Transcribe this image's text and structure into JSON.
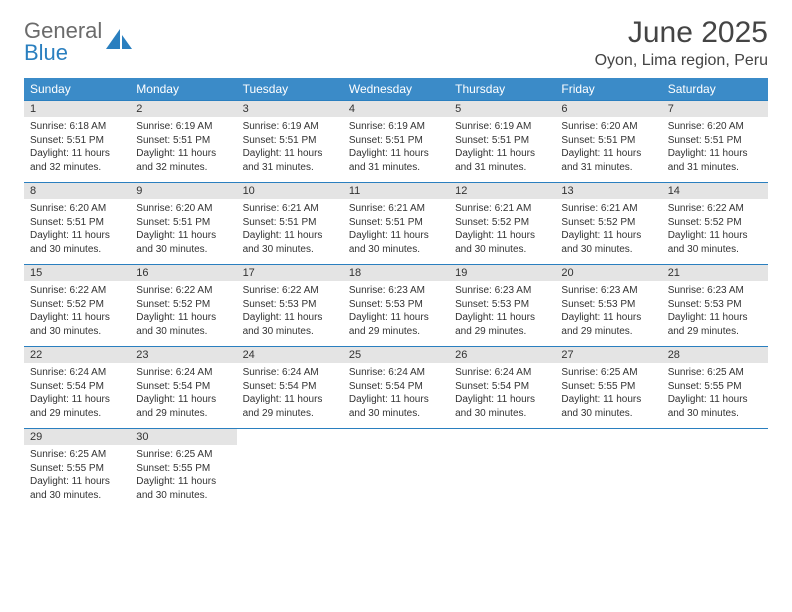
{
  "brand": {
    "name_gray": "General",
    "name_blue": "Blue"
  },
  "title": "June 2025",
  "location": "Oyon, Lima region, Peru",
  "theme": {
    "header_bg": "#3b8bc8",
    "header_fg": "#ffffff",
    "daynum_bg": "#e4e4e4",
    "week_border": "#2a7fbf",
    "text_color": "#333333",
    "logo_gray": "#6b6b6b",
    "logo_blue": "#2a7fbf"
  },
  "columns": [
    "Sunday",
    "Monday",
    "Tuesday",
    "Wednesday",
    "Thursday",
    "Friday",
    "Saturday"
  ],
  "weeks": [
    [
      {
        "n": "1",
        "sr": "6:18 AM",
        "ss": "5:51 PM",
        "dl": "11 hours and 32 minutes."
      },
      {
        "n": "2",
        "sr": "6:19 AM",
        "ss": "5:51 PM",
        "dl": "11 hours and 32 minutes."
      },
      {
        "n": "3",
        "sr": "6:19 AM",
        "ss": "5:51 PM",
        "dl": "11 hours and 31 minutes."
      },
      {
        "n": "4",
        "sr": "6:19 AM",
        "ss": "5:51 PM",
        "dl": "11 hours and 31 minutes."
      },
      {
        "n": "5",
        "sr": "6:19 AM",
        "ss": "5:51 PM",
        "dl": "11 hours and 31 minutes."
      },
      {
        "n": "6",
        "sr": "6:20 AM",
        "ss": "5:51 PM",
        "dl": "11 hours and 31 minutes."
      },
      {
        "n": "7",
        "sr": "6:20 AM",
        "ss": "5:51 PM",
        "dl": "11 hours and 31 minutes."
      }
    ],
    [
      {
        "n": "8",
        "sr": "6:20 AM",
        "ss": "5:51 PM",
        "dl": "11 hours and 30 minutes."
      },
      {
        "n": "9",
        "sr": "6:20 AM",
        "ss": "5:51 PM",
        "dl": "11 hours and 30 minutes."
      },
      {
        "n": "10",
        "sr": "6:21 AM",
        "ss": "5:51 PM",
        "dl": "11 hours and 30 minutes."
      },
      {
        "n": "11",
        "sr": "6:21 AM",
        "ss": "5:51 PM",
        "dl": "11 hours and 30 minutes."
      },
      {
        "n": "12",
        "sr": "6:21 AM",
        "ss": "5:52 PM",
        "dl": "11 hours and 30 minutes."
      },
      {
        "n": "13",
        "sr": "6:21 AM",
        "ss": "5:52 PM",
        "dl": "11 hours and 30 minutes."
      },
      {
        "n": "14",
        "sr": "6:22 AM",
        "ss": "5:52 PM",
        "dl": "11 hours and 30 minutes."
      }
    ],
    [
      {
        "n": "15",
        "sr": "6:22 AM",
        "ss": "5:52 PM",
        "dl": "11 hours and 30 minutes."
      },
      {
        "n": "16",
        "sr": "6:22 AM",
        "ss": "5:52 PM",
        "dl": "11 hours and 30 minutes."
      },
      {
        "n": "17",
        "sr": "6:22 AM",
        "ss": "5:53 PM",
        "dl": "11 hours and 30 minutes."
      },
      {
        "n": "18",
        "sr": "6:23 AM",
        "ss": "5:53 PM",
        "dl": "11 hours and 29 minutes."
      },
      {
        "n": "19",
        "sr": "6:23 AM",
        "ss": "5:53 PM",
        "dl": "11 hours and 29 minutes."
      },
      {
        "n": "20",
        "sr": "6:23 AM",
        "ss": "5:53 PM",
        "dl": "11 hours and 29 minutes."
      },
      {
        "n": "21",
        "sr": "6:23 AM",
        "ss": "5:53 PM",
        "dl": "11 hours and 29 minutes."
      }
    ],
    [
      {
        "n": "22",
        "sr": "6:24 AM",
        "ss": "5:54 PM",
        "dl": "11 hours and 29 minutes."
      },
      {
        "n": "23",
        "sr": "6:24 AM",
        "ss": "5:54 PM",
        "dl": "11 hours and 29 minutes."
      },
      {
        "n": "24",
        "sr": "6:24 AM",
        "ss": "5:54 PM",
        "dl": "11 hours and 29 minutes."
      },
      {
        "n": "25",
        "sr": "6:24 AM",
        "ss": "5:54 PM",
        "dl": "11 hours and 30 minutes."
      },
      {
        "n": "26",
        "sr": "6:24 AM",
        "ss": "5:54 PM",
        "dl": "11 hours and 30 minutes."
      },
      {
        "n": "27",
        "sr": "6:25 AM",
        "ss": "5:55 PM",
        "dl": "11 hours and 30 minutes."
      },
      {
        "n": "28",
        "sr": "6:25 AM",
        "ss": "5:55 PM",
        "dl": "11 hours and 30 minutes."
      }
    ],
    [
      {
        "n": "29",
        "sr": "6:25 AM",
        "ss": "5:55 PM",
        "dl": "11 hours and 30 minutes."
      },
      {
        "n": "30",
        "sr": "6:25 AM",
        "ss": "5:55 PM",
        "dl": "11 hours and 30 minutes."
      },
      null,
      null,
      null,
      null,
      null
    ]
  ],
  "labels": {
    "sunrise": "Sunrise:",
    "sunset": "Sunset:",
    "daylight": "Daylight:"
  }
}
